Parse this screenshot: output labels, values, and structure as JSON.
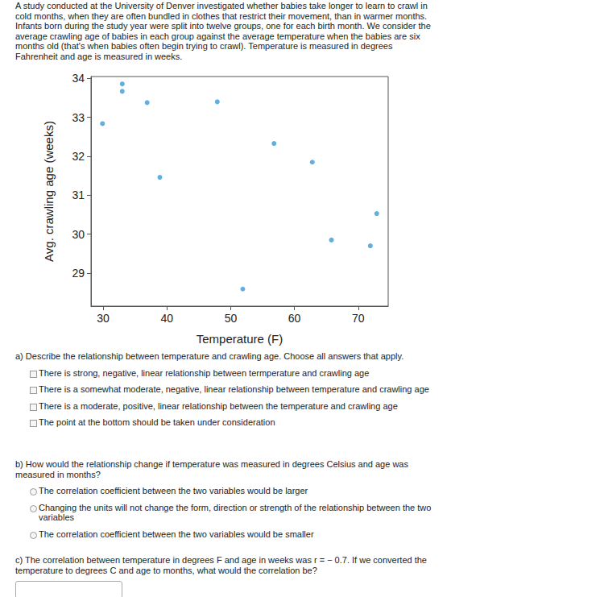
{
  "intro": "A study conducted at the University of Denver investigated whether babies take longer to learn to crawl in cold months, when they are often bundled in clothes that restrict their movement, than in warmer months. Infants born during the study year were split into twelve groups, one for each birth month. We consider the average crawling age of babies in each group against the average temperature when the babies are six months old (that's when babies often begin trying to crawl). Temperature is measured in degrees Fahrenheit and age is measured in weeks.",
  "chart_data": {
    "type": "scatter",
    "x": [
      29.9,
      33.0,
      33.0,
      36.9,
      38.9,
      47.9,
      51.9,
      56.8,
      62.8,
      65.8,
      71.9,
      72.9
    ],
    "values": [
      32.84,
      33.86,
      33.67,
      33.38,
      31.46,
      33.4,
      28.59,
      32.33,
      31.85,
      29.85,
      29.7,
      30.53
    ],
    "xlabel": "Temperature (F)",
    "ylabel": "Avg. crawling age (weeks)",
    "color": "#3a9ad9",
    "marker": "circle",
    "xlim": [
      28.1,
      74.7
    ],
    "ylim": [
      28.15,
      34.05
    ],
    "xticks": [
      30,
      40,
      50,
      60,
      70
    ],
    "yticks": [
      29,
      30,
      31,
      32,
      33,
      34
    ],
    "grid": false
  },
  "questions": [
    {
      "prompt": "a) Describe the relationship between temperature and crawling age. Choose all answers that apply.",
      "checkbox_options": [
        "There is strong, negative, linear relationship between termperature and crawling age",
        "There is a somewhat moderate, negative, linear relationship between temperature and crawling age",
        "There is a moderate, positive, linear relationship between the temperature and crawling age",
        "The point at the bottom should be taken under consideration"
      ]
    },
    {
      "prompt": "b) How would the relationship change if temperature was measured in degrees Celsius and age was measured in months?",
      "radio_options": [
        "The correlation coefficient between the two variables would be larger",
        "Changing the units will not change the form, direction or strength of the relationship between the two variables",
        "The correlation coefficient between the two variables would be smaller"
      ]
    },
    {
      "prompt": "c) The correlation between temperature in degrees F and age in weeks was r = − 0.7. If we converted the temperature to degrees C and age to months, what would the correlation be?",
      "text_input": true
    }
  ]
}
